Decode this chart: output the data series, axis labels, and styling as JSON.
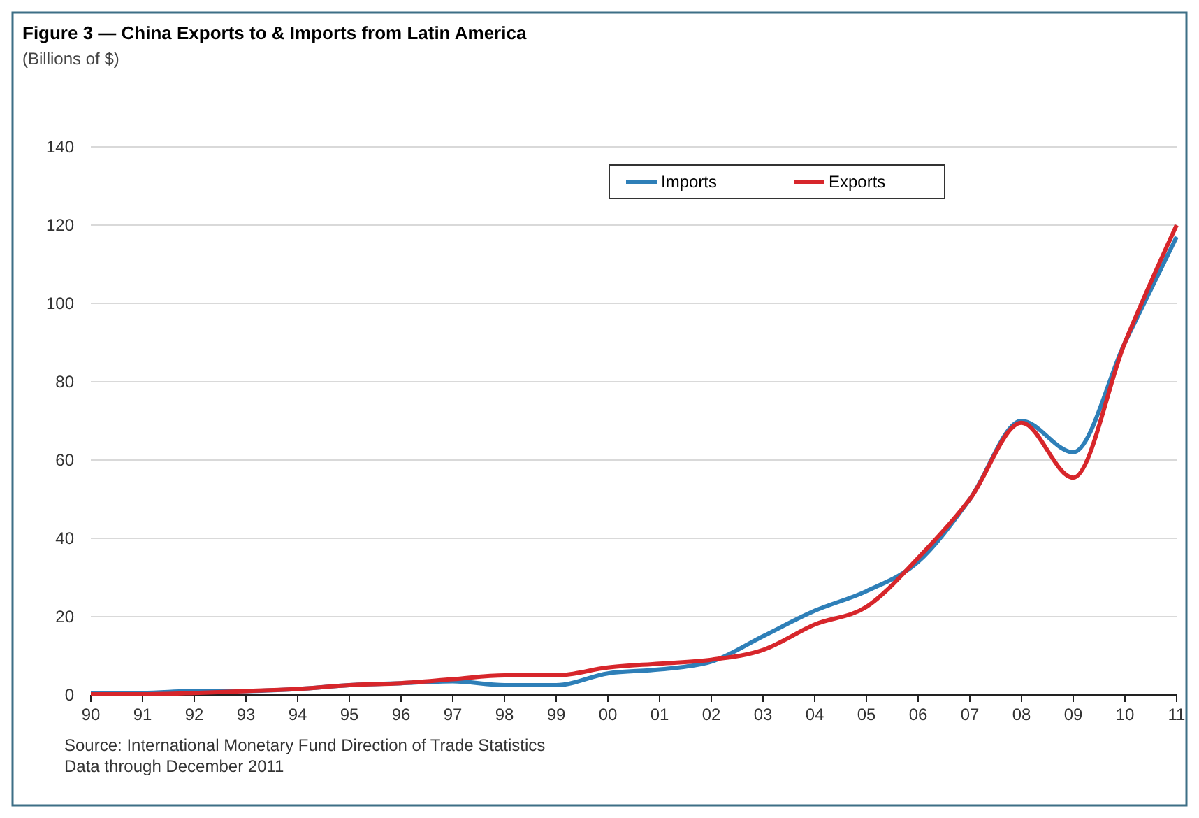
{
  "chart_data": {
    "type": "line",
    "title": "Figure 3 — China Exports to & Imports from Latin America",
    "subtitle": "(Billions of $)",
    "categories": [
      "90",
      "91",
      "92",
      "93",
      "94",
      "95",
      "96",
      "97",
      "98",
      "99",
      "00",
      "01",
      "02",
      "03",
      "04",
      "05",
      "06",
      "07",
      "08",
      "09",
      "10",
      "11"
    ],
    "series": [
      {
        "name": "Imports",
        "color": "#2e7fb8",
        "values": [
          0.5,
          0.5,
          1,
          1,
          1.5,
          2.5,
          3,
          3.5,
          2.5,
          2.5,
          5.5,
          6.5,
          8.5,
          15,
          21.5,
          26.5,
          34,
          50,
          70,
          62,
          90,
          117
        ]
      },
      {
        "name": "Exports",
        "color": "#d7262b",
        "values": [
          0.2,
          0.2,
          0.5,
          1,
          1.5,
          2.5,
          3,
          4,
          5,
          5,
          7,
          8,
          9,
          11.5,
          18,
          22.5,
          35,
          50,
          69.5,
          55.5,
          90,
          120
        ]
      }
    ],
    "ylim": [
      0,
      140
    ],
    "yticks": [
      0,
      20,
      40,
      60,
      80,
      100,
      120,
      140
    ],
    "grid": "y",
    "legend": "top",
    "marker": "none",
    "line_style": "solid",
    "annotations": [
      "Source: International  Monetary Fund Direction of Trade Statistics",
      "Data through  December 2011"
    ]
  }
}
